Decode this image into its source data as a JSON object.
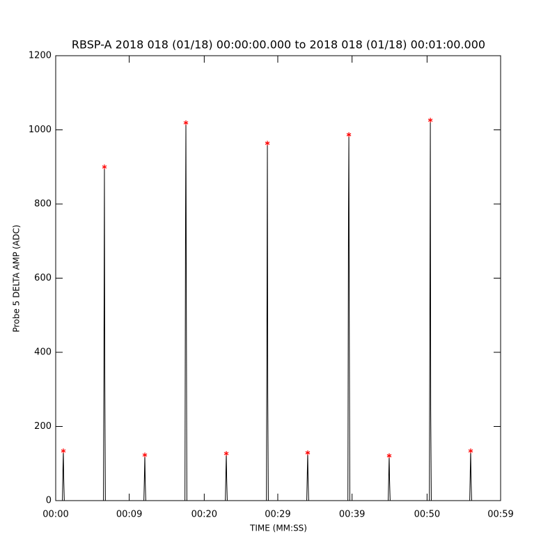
{
  "chart_data": {
    "type": "line",
    "title": "RBSP-A 2018 018 (01/18) 00:00:00.000 to 2018 018 (01/18) 00:01:00.000",
    "x_label": "TIME (MM:SS)",
    "y_label": "Probe 5 DELTA AMP (ADC)",
    "xlim": [
      0,
      59.9
    ],
    "xticks": [
      {
        "value": 0,
        "label": "00:00"
      },
      {
        "value": 9.9,
        "label": "00:09"
      },
      {
        "value": 20,
        "label": "00:20"
      },
      {
        "value": 29.9,
        "label": "00:29"
      },
      {
        "value": 39.9,
        "label": "00:39"
      },
      {
        "value": 50,
        "label": "00:50"
      },
      {
        "value": 59.9,
        "label": "00:59"
      }
    ],
    "ylim": [
      0,
      1200
    ],
    "yticks": [
      0,
      200,
      400,
      600,
      800,
      1000,
      1200
    ],
    "series": [
      {
        "color": "#000000",
        "x": [
          0,
          0.9,
          0.98,
          1.03,
          1.08,
          1.16,
          6.43,
          6.51,
          6.56,
          6.61,
          6.69,
          11.87,
          11.95,
          12.0,
          12.05,
          12.13,
          17.4,
          17.48,
          17.53,
          17.58,
          17.66,
          22.84,
          22.92,
          22.97,
          23.02,
          23.1,
          28.37,
          28.45,
          28.5,
          28.55,
          28.63,
          33.8,
          33.88,
          33.93,
          33.98,
          34.06,
          39.34,
          39.42,
          39.47,
          39.52,
          39.6,
          44.77,
          44.85,
          44.9,
          44.95,
          45.03,
          50.31,
          50.39,
          50.44,
          50.49,
          50.57,
          55.74,
          55.82,
          55.87,
          55.92,
          56.0,
          59.9
        ],
        "values": [
          0,
          0,
          90,
          134,
          60,
          0,
          0,
          495,
          900,
          340,
          0,
          0,
          70,
          123,
          55,
          0,
          0,
          745,
          1019,
          600,
          0,
          0,
          80,
          127,
          60,
          0,
          0,
          545,
          964,
          290,
          0,
          0,
          80,
          129,
          60,
          0,
          0,
          780,
          987,
          555,
          0,
          0,
          75,
          121,
          55,
          0,
          0,
          605,
          1026,
          245,
          0,
          0,
          85,
          134,
          60,
          0,
          0
        ]
      },
      {
        "color": "#ff0000",
        "marker": "asterisk",
        "x": [
          1.03,
          6.56,
          12.0,
          17.53,
          22.97,
          28.5,
          33.93,
          39.47,
          44.9,
          50.44,
          55.87
        ],
        "values": [
          134,
          900,
          123,
          1019,
          127,
          964,
          129,
          987,
          121,
          1026,
          134
        ]
      }
    ]
  }
}
